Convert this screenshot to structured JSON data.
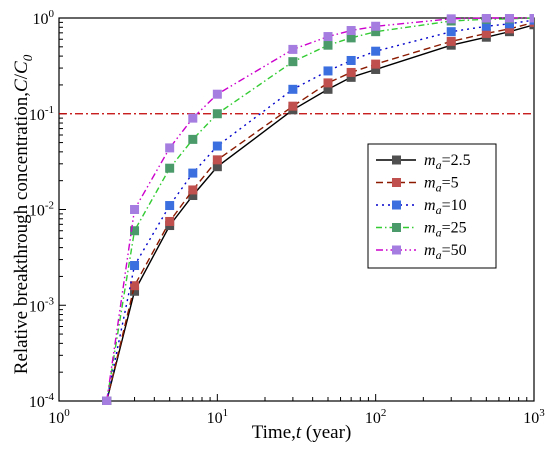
{
  "chart_data": {
    "type": "line",
    "xscale": "log",
    "yscale": "log",
    "xlim": [
      1,
      1000
    ],
    "ylim": [
      0.0001,
      1
    ],
    "x_ticks": [
      {
        "value": 1,
        "base": "10",
        "exp": "0"
      },
      {
        "value": 10,
        "base": "10",
        "exp": "1"
      },
      {
        "value": 100,
        "base": "10",
        "exp": "2"
      },
      {
        "value": 1000,
        "base": "10",
        "exp": "3"
      }
    ],
    "y_ticks": [
      {
        "value": 0.0001,
        "base": "10",
        "exp": "-4"
      },
      {
        "value": 0.001,
        "base": "10",
        "exp": "-3"
      },
      {
        "value": 0.01,
        "base": "10",
        "exp": "-2"
      },
      {
        "value": 0.1,
        "base": "10",
        "exp": "-1"
      },
      {
        "value": 1,
        "base": "10",
        "exp": "0"
      }
    ],
    "xlabel": {
      "prefix": "Time,",
      "variable": "t",
      "suffix": " (year)"
    },
    "ylabel": {
      "prefix": "Relative breakthrough concentration,",
      "num": "C",
      "slash": "/",
      "den": "C",
      "den_sub": "0"
    },
    "reference_line": {
      "y": 0.1,
      "color": "#c00000",
      "style": "dash-dot"
    },
    "legend": {
      "placement": "right-center"
    },
    "x": [
      2,
      3,
      5,
      7,
      10,
      30,
      50,
      70,
      100,
      300,
      500,
      700,
      1000
    ],
    "series": [
      {
        "name_var": "m",
        "name_sub": "a",
        "name_value": "=2.5",
        "line_color": "#000000",
        "marker_color": "#505050",
        "dash": "solid",
        "values": [
          0.0001,
          0.0014,
          0.0068,
          0.014,
          0.028,
          0.11,
          0.18,
          0.24,
          0.29,
          0.52,
          0.63,
          0.72,
          0.85
        ]
      },
      {
        "name_var": "m",
        "name_sub": "a",
        "name_value": "=5",
        "line_color": "#8b1a00",
        "marker_color": "#c0504d",
        "dash": "long-dash",
        "values": [
          0.0001,
          0.0016,
          0.0075,
          0.016,
          0.033,
          0.12,
          0.21,
          0.27,
          0.33,
          0.57,
          0.69,
          0.77,
          0.9
        ]
      },
      {
        "name_var": "m",
        "name_sub": "a",
        "name_value": "=10",
        "line_color": "#0000cc",
        "marker_color": "#3b6fe0",
        "dash": "dotted",
        "values": [
          0.0001,
          0.0026,
          0.011,
          0.024,
          0.046,
          0.18,
          0.28,
          0.36,
          0.45,
          0.72,
          0.82,
          0.87,
          0.95
        ]
      },
      {
        "name_var": "m",
        "name_sub": "a",
        "name_value": "=25",
        "line_color": "#33cc33",
        "marker_color": "#4a9a6a",
        "dash": "dash-dot",
        "values": [
          0.0001,
          0.006,
          0.027,
          0.054,
          0.1,
          0.35,
          0.52,
          0.62,
          0.72,
          0.93,
          0.97,
          0.98,
          1.0
        ]
      },
      {
        "name_var": "m",
        "name_sub": "a",
        "name_value": "=50",
        "line_color": "#cc00cc",
        "marker_color": "#a57de0",
        "dash": "dash-dot-dot",
        "values": [
          0.0001,
          0.01,
          0.044,
          0.09,
          0.16,
          0.47,
          0.64,
          0.74,
          0.82,
          0.98,
          1.0,
          1.0,
          1.0
        ]
      }
    ]
  }
}
